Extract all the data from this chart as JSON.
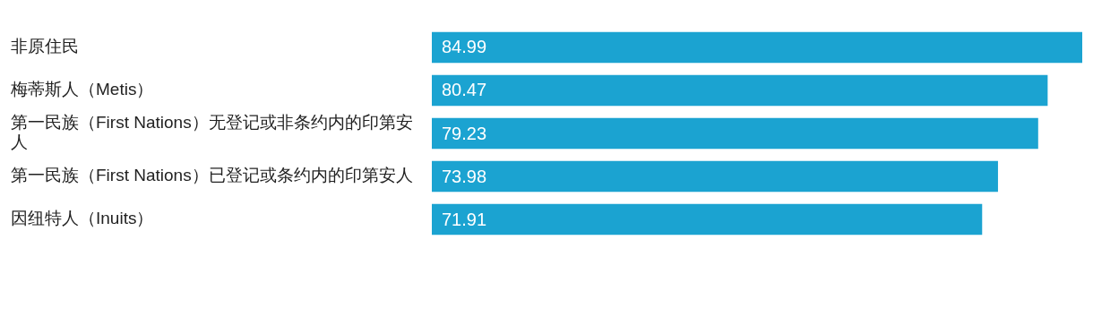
{
  "chart_data": {
    "type": "bar",
    "orientation": "horizontal",
    "categories": [
      "非原住民",
      "梅蒂斯人（Metis）",
      "第一民族（First Nations）无登记或非条约内的印第安人",
      "第一民族（First Nations）已登记或条约内的印第安人",
      "因纽特人（Inuits）"
    ],
    "values": [
      84.99,
      80.47,
      79.23,
      73.98,
      71.91
    ],
    "color": "#1ba3d1",
    "data_labels": true
  }
}
